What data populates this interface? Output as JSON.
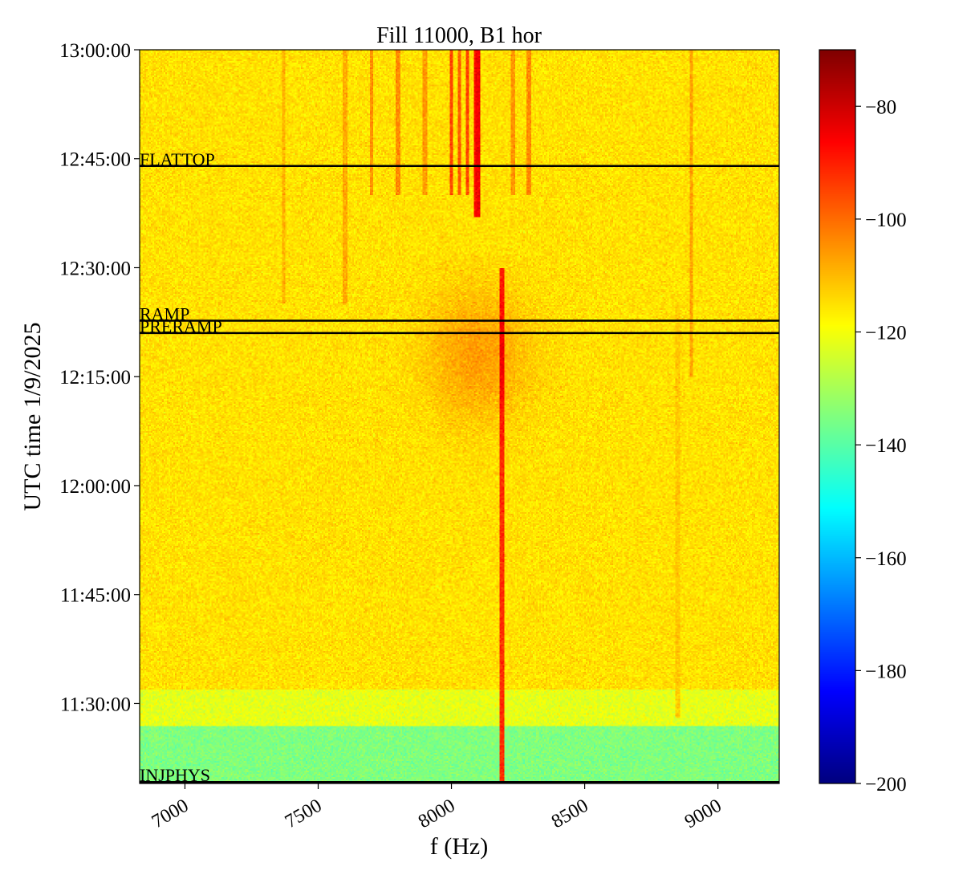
{
  "chart_data": {
    "type": "heatmap",
    "title": "Fill 11000, B1 hor",
    "xlabel": "f (Hz)",
    "ylabel": "UTC time 1/9/2025",
    "xlim": [
      6830,
      9230
    ],
    "x_ticks": [
      7000,
      7500,
      8000,
      8500,
      9000
    ],
    "x_tick_labels": [
      "7000",
      "7500",
      "8000",
      "8500",
      "9000"
    ],
    "ylim_minutes": [
      679,
      780
    ],
    "y_ticks_minutes": [
      690,
      705,
      720,
      735,
      750,
      765,
      780
    ],
    "y_tick_labels": [
      "11:30:00",
      "11:45:00",
      "12:00:00",
      "12:15:00",
      "12:30:00",
      "12:45:00",
      "13:00:00"
    ],
    "colormap": "jet",
    "colorbar": {
      "range": [
        -200,
        -70
      ],
      "ticks": [
        -80,
        -100,
        -120,
        -140,
        -160,
        -180,
        -200
      ],
      "tick_labels": [
        "−80",
        "−100",
        "−120",
        "−140",
        "−160",
        "−180",
        "−200"
      ]
    },
    "beam_modes": [
      {
        "label": "FLATTOP",
        "time_minutes": 764.0
      },
      {
        "label": "RAMP",
        "time_minutes": 742.7
      },
      {
        "label": "PRERAMP",
        "time_minutes": 741.0
      },
      {
        "label": "INJPHYS",
        "time_minutes": 679.2
      }
    ],
    "background_levels_db": [
      {
        "from_minutes": 679,
        "to_minutes": 687,
        "level": -135
      },
      {
        "from_minutes": 687,
        "to_minutes": 692,
        "level": -122
      },
      {
        "from_minutes": 692,
        "to_minutes": 780,
        "level": -115
      }
    ],
    "spectral_lines": [
      {
        "freq_hz": 8000,
        "from_minutes": 760,
        "to_minutes": 780,
        "level": -95
      },
      {
        "freq_hz": 8030,
        "from_minutes": 760,
        "to_minutes": 780,
        "level": -98
      },
      {
        "freq_hz": 8060,
        "from_minutes": 760,
        "to_minutes": 780,
        "level": -95
      },
      {
        "freq_hz": 8090,
        "from_minutes": 757,
        "to_minutes": 780,
        "level": -88
      },
      {
        "freq_hz": 8100,
        "from_minutes": 757,
        "to_minutes": 780,
        "level": -85
      },
      {
        "freq_hz": 8190,
        "from_minutes": 679,
        "to_minutes": 750,
        "level": -92
      },
      {
        "freq_hz": 7700,
        "from_minutes": 760,
        "to_minutes": 780,
        "level": -105
      },
      {
        "freq_hz": 7800,
        "from_minutes": 760,
        "to_minutes": 780,
        "level": -104
      },
      {
        "freq_hz": 8290,
        "from_minutes": 760,
        "to_minutes": 780,
        "level": -104
      },
      {
        "freq_hz": 8230,
        "from_minutes": 760,
        "to_minutes": 780,
        "level": -105
      },
      {
        "freq_hz": 7900,
        "from_minutes": 760,
        "to_minutes": 780,
        "level": -106
      },
      {
        "freq_hz": 8900,
        "from_minutes": 735,
        "to_minutes": 780,
        "level": -107
      },
      {
        "freq_hz": 7600,
        "from_minutes": 745,
        "to_minutes": 780,
        "level": -108
      },
      {
        "freq_hz": 7370,
        "from_minutes": 745,
        "to_minutes": 780,
        "level": -109
      },
      {
        "freq_hz": 8850,
        "from_minutes": 688,
        "to_minutes": 745,
        "level": -112
      }
    ]
  }
}
